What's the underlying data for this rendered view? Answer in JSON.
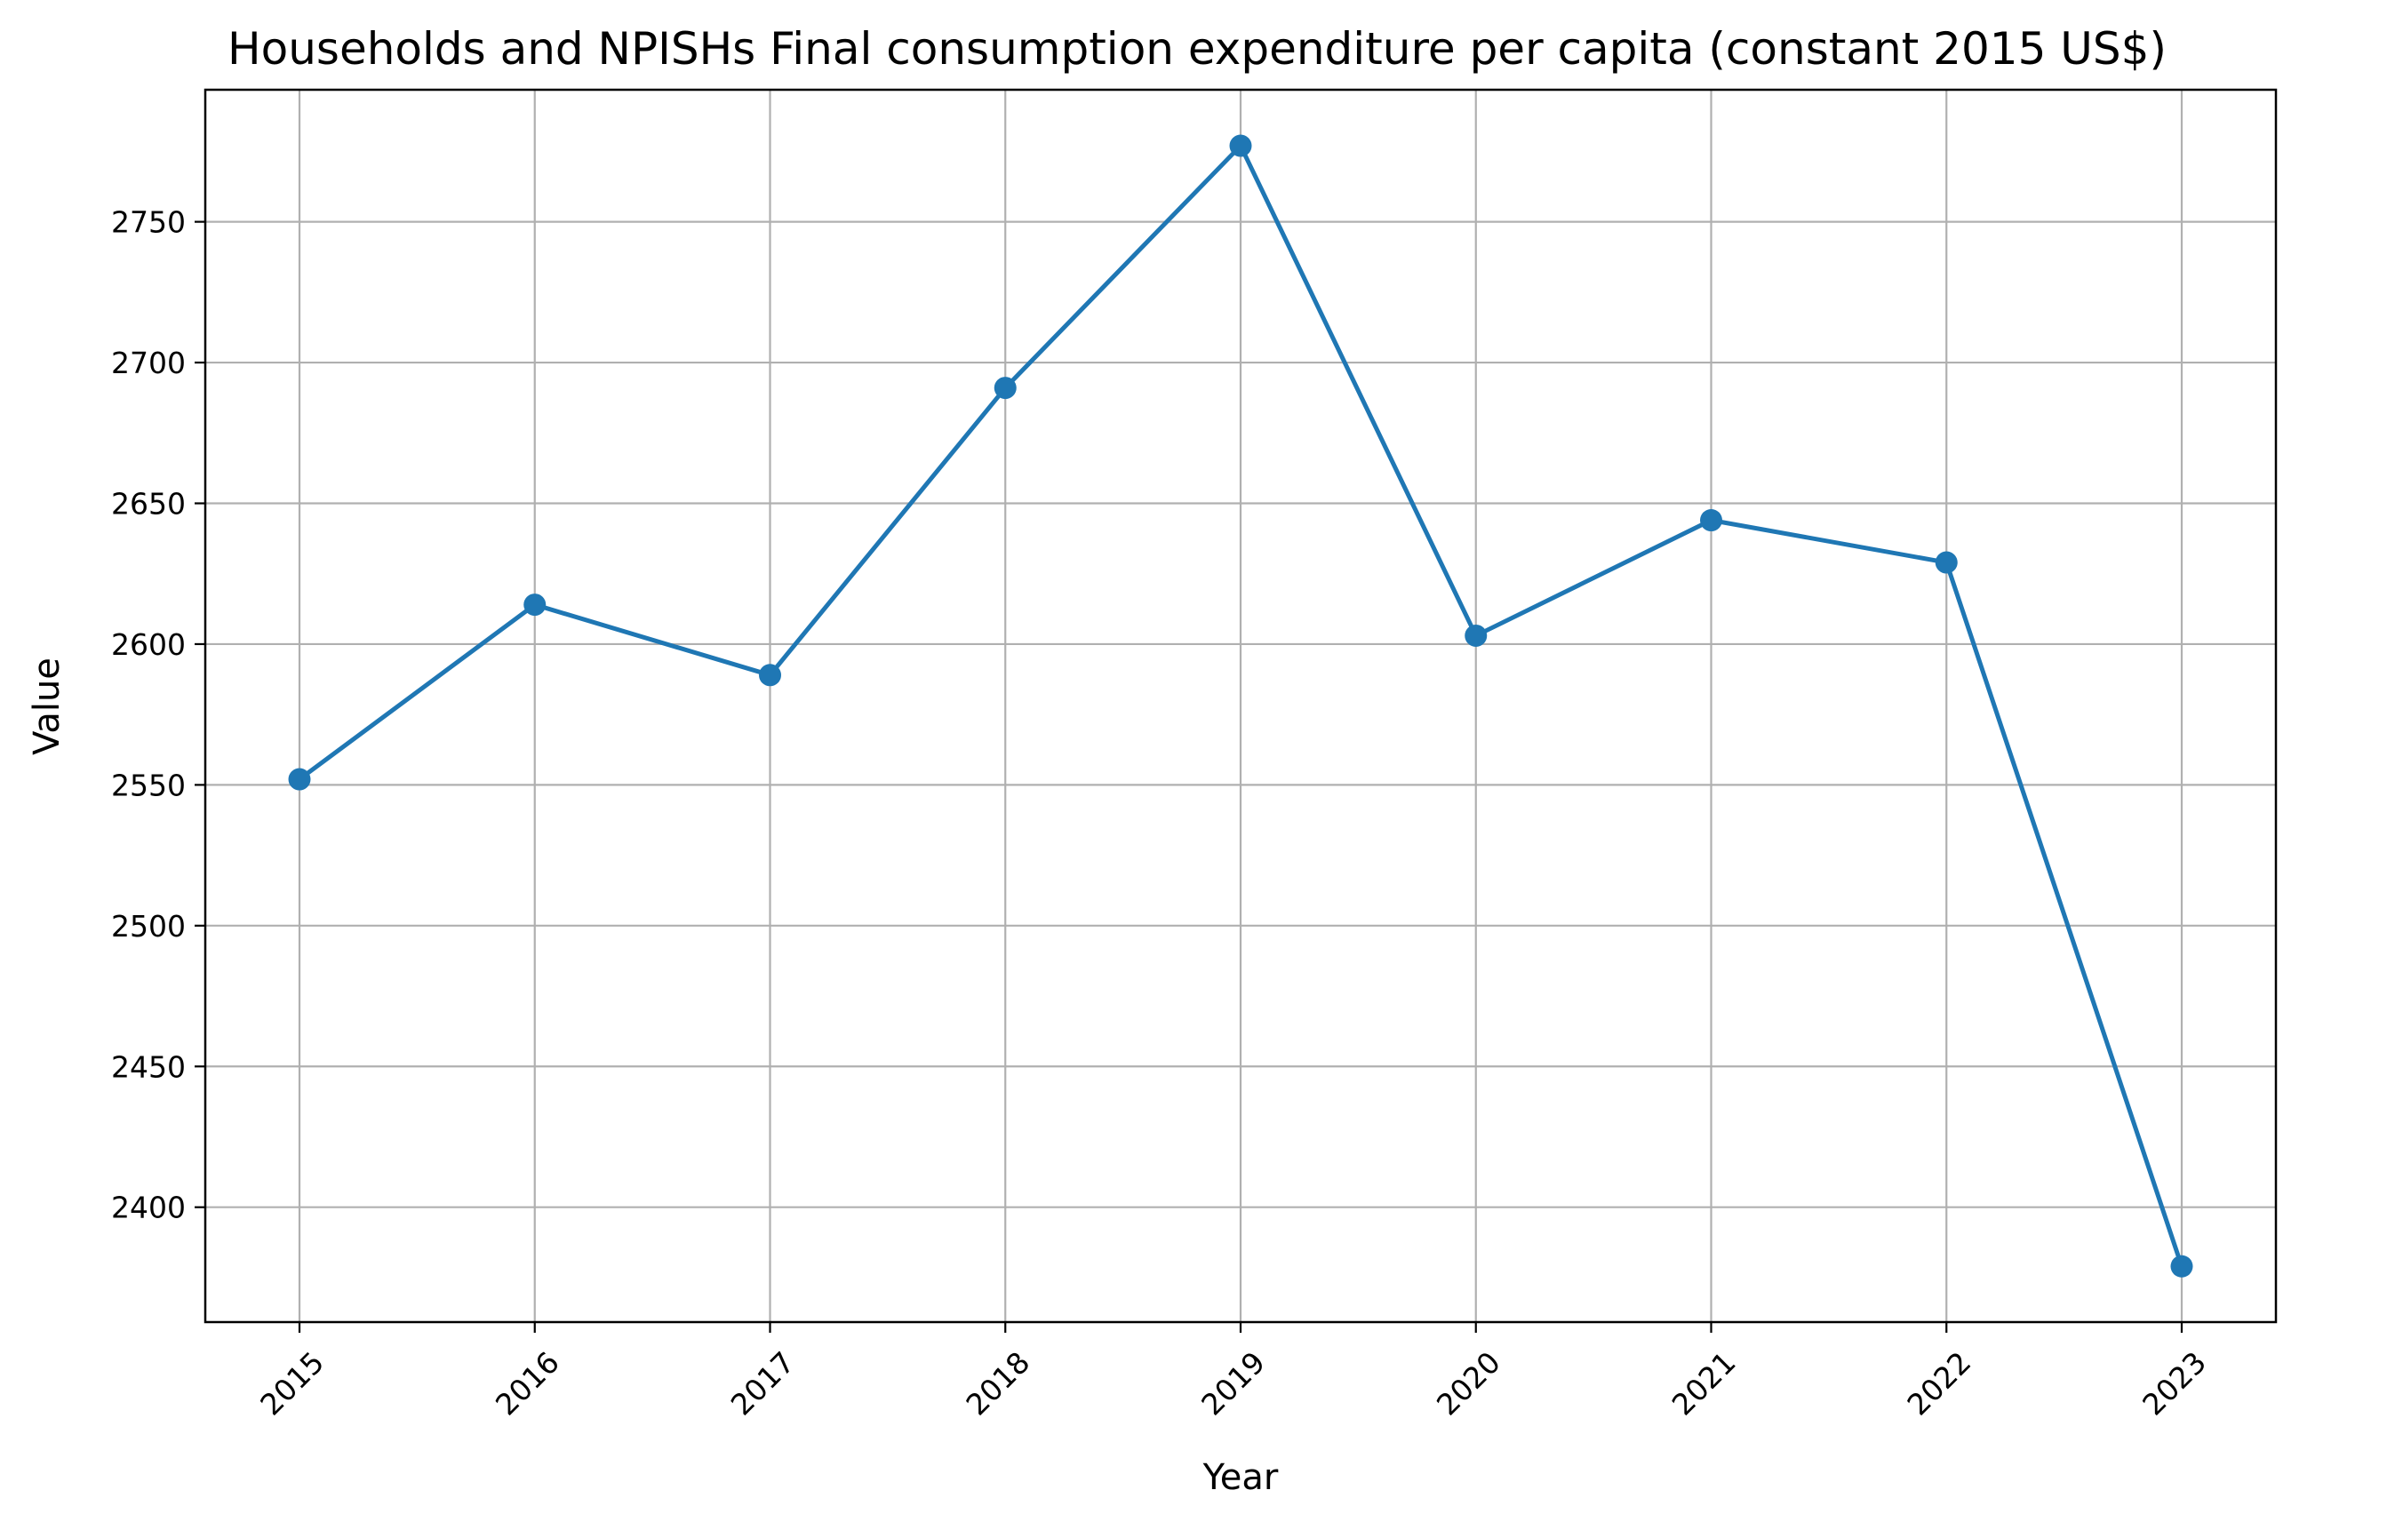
{
  "chart_data": {
    "type": "line",
    "title": "Households and NPISHs Final consumption expenditure per capita (constant 2015 US$)",
    "xlabel": "Year",
    "ylabel": "Value",
    "categories": [
      "2015",
      "2016",
      "2017",
      "2018",
      "2019",
      "2020",
      "2021",
      "2022",
      "2023"
    ],
    "series": [
      {
        "values": [
          2552,
          2614,
          2589,
          2691,
          2777,
          2603,
          2644,
          2629,
          2379
        ],
        "color": "#1f77b4",
        "marker": "circle"
      }
    ],
    "yticks": [
      2400,
      2450,
      2500,
      2550,
      2600,
      2650,
      2700,
      2750
    ],
    "ylim": [
      2359.2,
      2796.9
    ],
    "grid": true,
    "legend": "none"
  }
}
